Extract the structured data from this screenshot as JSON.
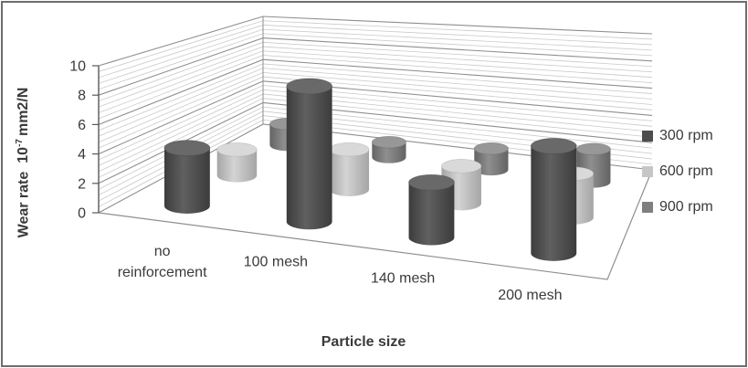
{
  "figure": {
    "background": "#ffffff",
    "border_color": "#6d6d6d"
  },
  "chart_data": {
    "type": "bar",
    "style": "3d-cylinder",
    "title": "",
    "categories": [
      "no reinforcement",
      "100 mesh",
      "140 mesh",
      "200 mesh"
    ],
    "series": [
      {
        "name": "300 rpm",
        "color": "#4d4d4d",
        "edge": "#3c3c3c",
        "mid": "#606060",
        "top": "#696969",
        "values": [
          4.1,
          9.6,
          3.9,
          7.6
        ]
      },
      {
        "name": "600 rpm",
        "color": "#c6c6c6",
        "edge": "#a5a5a5",
        "mid": "#d4d4d4",
        "top": "#d9d9d9",
        "values": [
          2.0,
          3.1,
          2.9,
          3.4
        ]
      },
      {
        "name": "900 rpm",
        "color": "#7f7f7f",
        "edge": "#636363",
        "mid": "#8f8f8f",
        "top": "#979797",
        "values": [
          1.8,
          1.3,
          1.8,
          2.8
        ]
      }
    ],
    "xlabel": "Particle size",
    "ylabel": {
      "pre": "Wear rate",
      "base": "10",
      "exp": "-7",
      "unit": "mm2/N"
    },
    "ylabel_text": "Wear rate 10-7 mm2/N",
    "ylim": [
      0,
      10
    ],
    "y_ticks": [
      "0",
      "2",
      "4",
      "6",
      "8",
      "10"
    ],
    "y_major_unit": 2,
    "y_minor_unit": 0.4,
    "grid": true,
    "legend_position": "right",
    "colors": {
      "grid_major": "#8f8f8f",
      "grid_minor": "#c9c9c9",
      "axis_line": "#595959",
      "text": "#3a3a3a",
      "floor_edge": "#8f8f8f"
    }
  }
}
